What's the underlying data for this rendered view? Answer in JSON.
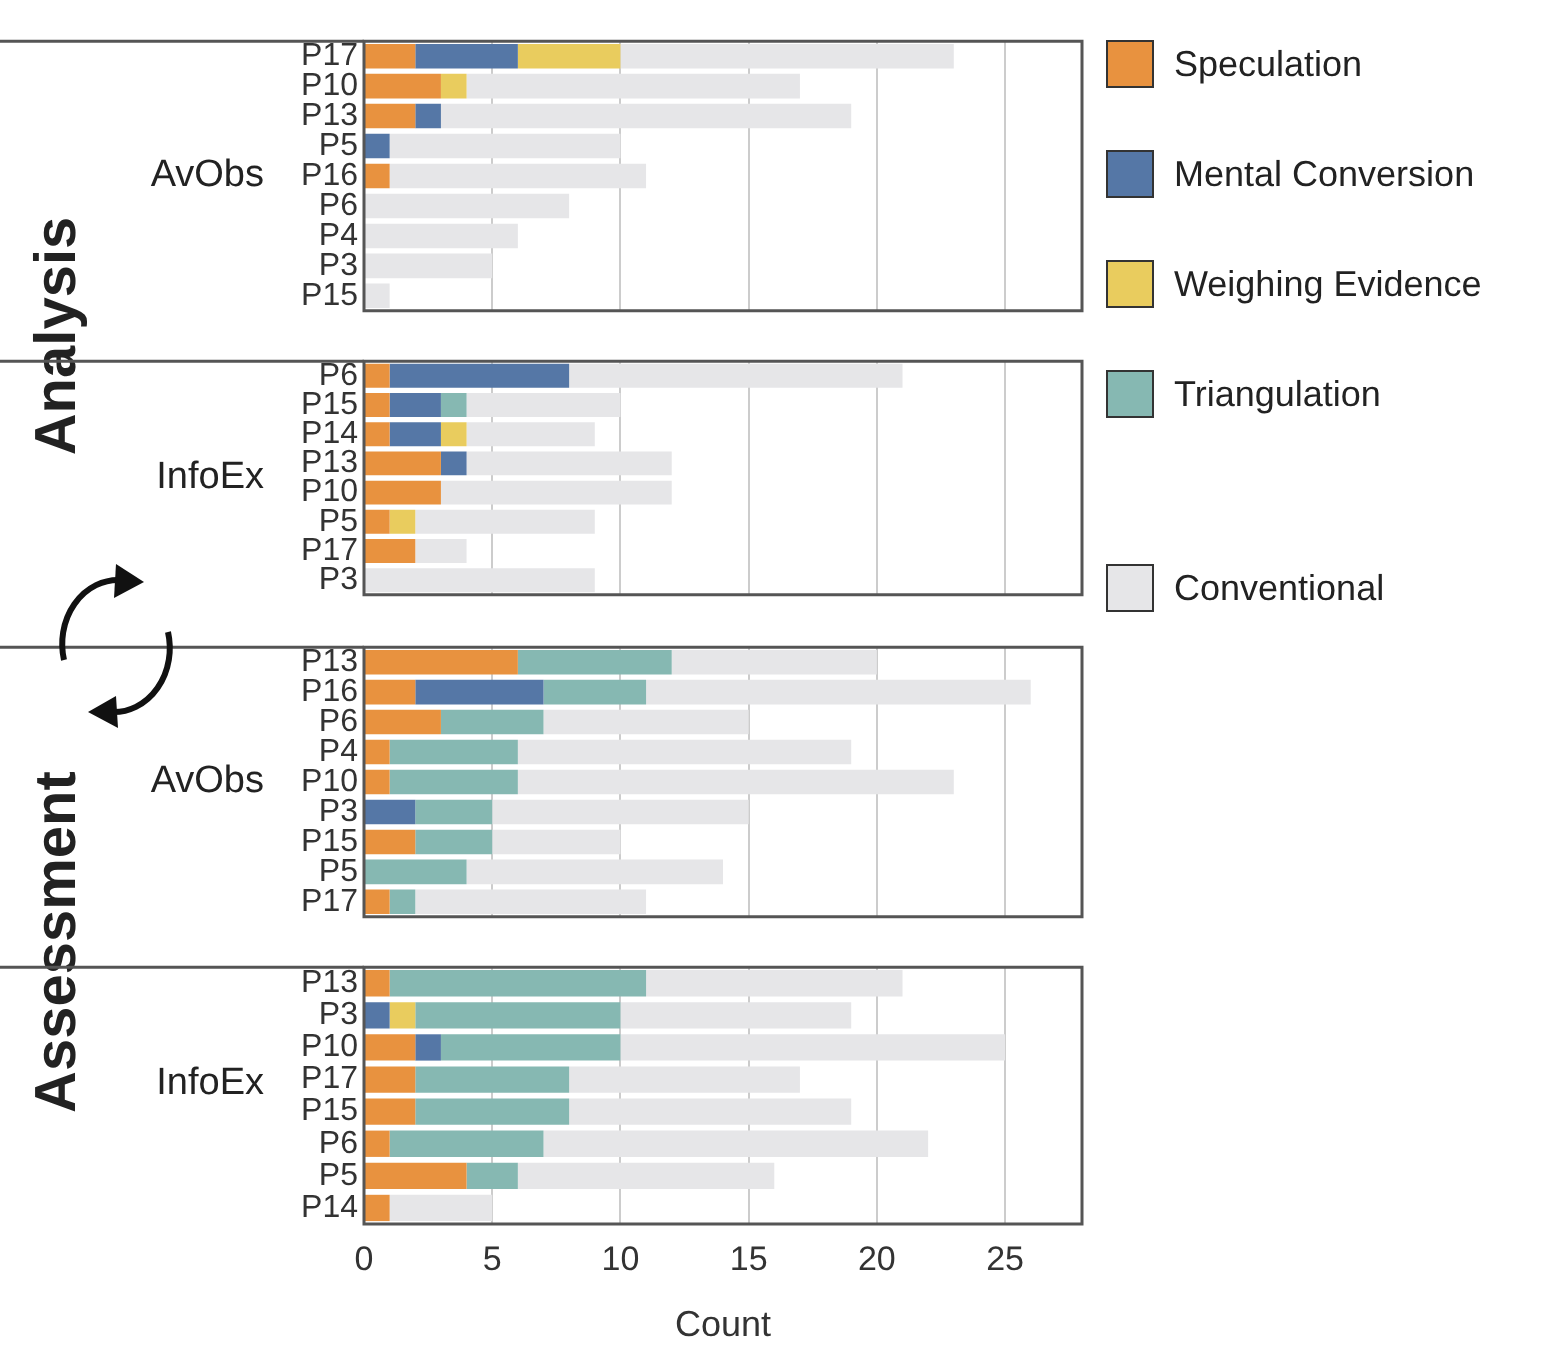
{
  "chart_data": [
    {
      "type": "bar",
      "orientation": "horizontal",
      "stacked": true,
      "title": "Analysis",
      "ylabel": "AvObs",
      "categories": [
        "P17",
        "P10",
        "P13",
        "P5",
        "P16",
        "P6",
        "P4",
        "P3",
        "P15"
      ],
      "xlim": [
        0,
        28
      ],
      "xticks": [
        0,
        5,
        10,
        15,
        20,
        25
      ],
      "grid": "x",
      "tick_labels": "y",
      "legend": "right",
      "series": [
        {
          "name": "Speculation",
          "color": "#e8923f",
          "values": [
            2,
            3,
            2,
            null,
            1,
            null,
            null,
            null,
            null
          ]
        },
        {
          "name": "Mental Conversion",
          "color": "#5577a6",
          "values": [
            4,
            null,
            1,
            1,
            null,
            null,
            null,
            null,
            null
          ]
        },
        {
          "name": "Weighing Evidence",
          "color": "#e9cc5e",
          "values": [
            4,
            1,
            null,
            null,
            null,
            null,
            null,
            null,
            null
          ]
        },
        {
          "name": "Triangulation",
          "color": "#86b8b2",
          "values": [
            null,
            null,
            null,
            null,
            null,
            null,
            null,
            null,
            null
          ]
        },
        {
          "name": "Conventional",
          "color": "#e6e6e8",
          "values": [
            13,
            13,
            16,
            9,
            10,
            8,
            6,
            5,
            1
          ]
        }
      ]
    },
    {
      "type": "bar",
      "orientation": "horizontal",
      "stacked": true,
      "ylabel": "InfoEx",
      "categories": [
        "P6",
        "P15",
        "P14",
        "P13",
        "P10",
        "P5",
        "P17",
        "P3"
      ],
      "xlim": [
        0,
        28
      ],
      "xticks": [
        0,
        5,
        10,
        15,
        20,
        25
      ],
      "grid": "x",
      "tick_labels": "y",
      "series": [
        {
          "color": "#e8923f",
          "values": [
            1,
            1,
            1,
            3,
            3,
            1,
            2,
            null
          ]
        },
        {
          "color": "#5577a6",
          "values": [
            7,
            2,
            2,
            1,
            null,
            null,
            null,
            null
          ]
        },
        {
          "color": "#e9cc5e",
          "values": [
            null,
            null,
            1,
            null,
            null,
            1,
            null,
            null
          ]
        },
        {
          "color": "#86b8b2",
          "values": [
            null,
            1,
            null,
            null,
            null,
            null,
            null,
            null
          ]
        },
        {
          "color": "#e6e6e8",
          "values": [
            13,
            6,
            5,
            8,
            9,
            7,
            2,
            9
          ]
        }
      ]
    },
    {
      "type": "bar",
      "orientation": "horizontal",
      "stacked": true,
      "title": "Assessment",
      "ylabel": "AvObs",
      "categories": [
        "P13",
        "P16",
        "P6",
        "P4",
        "P10",
        "P3",
        "P15",
        "P5",
        "P17"
      ],
      "xlim": [
        0,
        28
      ],
      "xticks": [
        0,
        5,
        10,
        15,
        20,
        25
      ],
      "grid": "x",
      "tick_labels": "y",
      "series": [
        {
          "color": "#e8923f",
          "values": [
            6,
            2,
            3,
            1,
            1,
            null,
            2,
            null,
            1
          ]
        },
        {
          "color": "#5577a6",
          "values": [
            null,
            5,
            null,
            null,
            null,
            2,
            null,
            null,
            null
          ]
        },
        {
          "color": "#86b8b2",
          "values": [
            6,
            4,
            4,
            5,
            5,
            3,
            3,
            4,
            1
          ]
        },
        {
          "color": "#e6e6e8",
          "values": [
            8,
            15,
            8,
            13,
            17,
            10,
            5,
            10,
            9
          ]
        }
      ]
    },
    {
      "type": "bar",
      "orientation": "horizontal",
      "stacked": true,
      "ylabel": "InfoEx",
      "xlabel": "Count",
      "categories": [
        "P13",
        "P3",
        "P10",
        "P17",
        "P15",
        "P6",
        "P5",
        "P14"
      ],
      "xlim": [
        0,
        28
      ],
      "xticks": [
        0,
        5,
        10,
        15,
        20,
        25
      ],
      "grid": "x",
      "series": [
        {
          "color": "#e8923f",
          "values": [
            1,
            null,
            2,
            2,
            2,
            1,
            4,
            1
          ]
        },
        {
          "color": "#5577a6",
          "values": [
            null,
            1,
            1,
            null,
            null,
            null,
            null,
            null
          ]
        },
        {
          "color": "#e9cc5e",
          "values": [
            null,
            1,
            null,
            null,
            null,
            null,
            null,
            null
          ]
        },
        {
          "color": "#86b8b2",
          "values": [
            10,
            8,
            7,
            6,
            6,
            6,
            2,
            null
          ]
        },
        {
          "color": "#e6e6e8",
          "values": [
            10,
            9,
            15,
            9,
            11,
            15,
            10,
            4
          ]
        }
      ]
    }
  ]
}
